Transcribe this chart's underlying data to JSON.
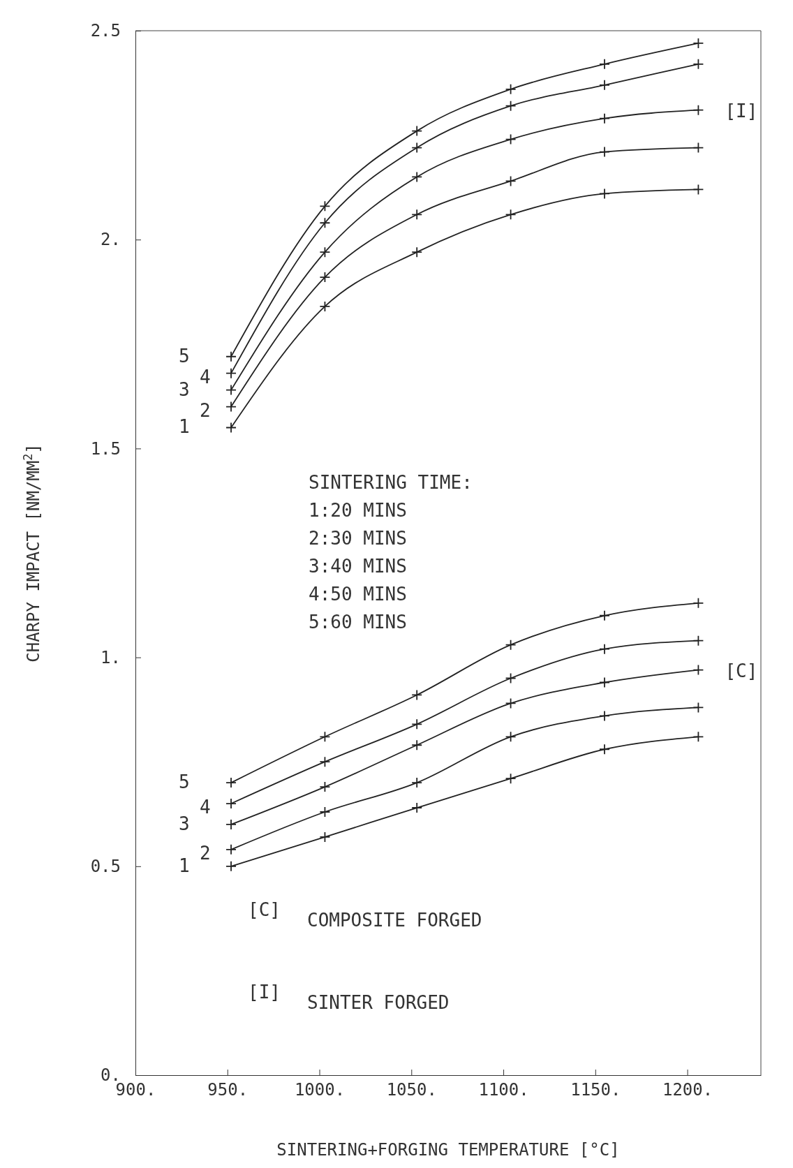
{
  "chart_data": {
    "type": "line",
    "xlabel": "SINTERING+FORGING TEMPERATURE [°C]",
    "ylabel": "CHARPY IMPACT [NM/MM$^{2}$]",
    "xlim": [
      900,
      1240
    ],
    "ylim": [
      0,
      2.5
    ],
    "xticks": [
      {
        "value": 900,
        "label": "900."
      },
      {
        "value": 950,
        "label": "950."
      },
      {
        "value": 1000,
        "label": "1000."
      },
      {
        "value": 1050,
        "label": "1050."
      },
      {
        "value": 1100,
        "label": "1100."
      },
      {
        "value": 1150,
        "label": "1150."
      },
      {
        "value": 1200,
        "label": "1200."
      }
    ],
    "yticks": [
      {
        "value": 0,
        "label": "0."
      },
      {
        "value": 0.5,
        "label": "0.5"
      },
      {
        "value": 1,
        "label": "1."
      },
      {
        "value": 1.5,
        "label": "1.5"
      },
      {
        "value": 2,
        "label": "2."
      },
      {
        "value": 2.5,
        "label": "2.5"
      }
    ],
    "x": [
      952,
      1003,
      1053,
      1104,
      1155,
      1206
    ],
    "marker": "cross",
    "line_style": "solid",
    "grid": false,
    "legend": false,
    "series": [
      {
        "name": "5",
        "color": "#222222",
        "values": [
          1.72,
          2.08,
          2.26,
          2.36,
          2.42,
          2.47
        ]
      },
      {
        "name": "4",
        "color": "#222222",
        "values": [
          1.68,
          2.04,
          2.22,
          2.32,
          2.37,
          2.42
        ]
      },
      {
        "name": "3",
        "color": "#222222",
        "values": [
          1.64,
          1.97,
          2.15,
          2.24,
          2.29,
          2.31
        ]
      },
      {
        "name": "2",
        "color": "#222222",
        "values": [
          1.6,
          1.91,
          2.06,
          2.14,
          2.21,
          2.22
        ]
      },
      {
        "name": "1",
        "color": "#222222",
        "values": [
          1.55,
          1.84,
          1.97,
          2.06,
          2.11,
          2.12
        ]
      },
      {
        "name": "5",
        "color": "#222222",
        "values": [
          0.7,
          0.81,
          0.91,
          1.03,
          1.1,
          1.13
        ]
      },
      {
        "name": "4",
        "color": "#222222",
        "values": [
          0.65,
          0.75,
          0.84,
          0.95,
          1.02,
          1.04
        ]
      },
      {
        "name": "3",
        "color": "#222222",
        "values": [
          0.6,
          0.69,
          0.79,
          0.89,
          0.94,
          0.97
        ]
      },
      {
        "name": "2",
        "color": "#222222",
        "values": [
          0.54,
          0.63,
          0.7,
          0.81,
          0.86,
          0.88
        ]
      },
      {
        "name": "1",
        "color": "#222222",
        "values": [
          0.5,
          0.57,
          0.64,
          0.71,
          0.78,
          0.81
        ]
      }
    ],
    "annotations": [
      {
        "text": "[I]",
        "x": 1206,
        "y": 2.31
      },
      {
        "text": "[C]",
        "x": 1206,
        "y": 0.97
      },
      "SINTERING TIME:",
      "1:20 MINS",
      "2:30 MINS",
      "3:40 MINS",
      "4:50 MINS",
      "5:60 MINS",
      "[C]",
      "COMPOSITE FORGED",
      "[I]",
      "SINTER FORGED"
    ]
  }
}
